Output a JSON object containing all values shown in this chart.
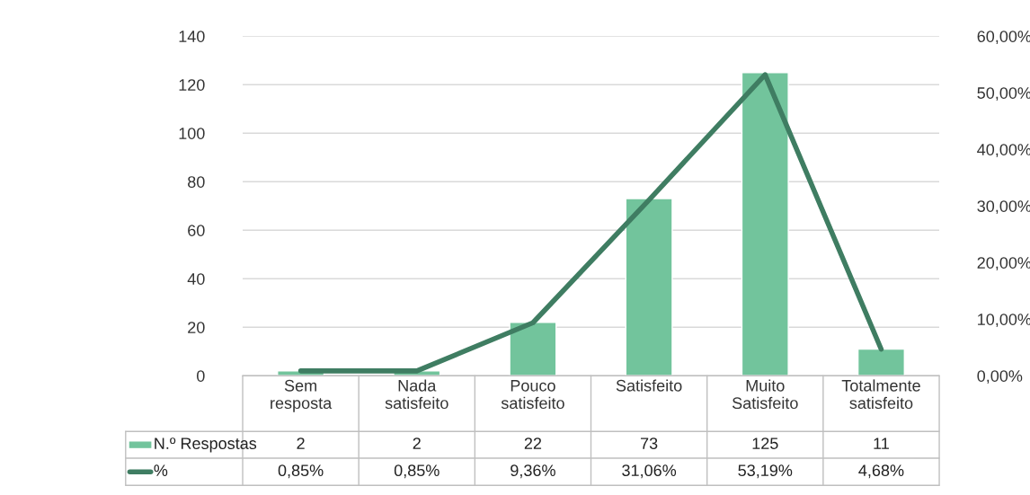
{
  "chart_data": {
    "type": "bar",
    "categories": [
      "Sem\nresposta",
      "Nada\nsatisfeito",
      "Pouco\nsatisfeito",
      "Satisfeito",
      "Muito\nSatisfeito",
      "Totalmente\nsatisfeito"
    ],
    "series": [
      {
        "name": "N.º Respostas",
        "color": "#72c49c",
        "values": [
          2,
          2,
          22,
          73,
          125,
          11
        ],
        "value_labels": [
          "2",
          "2",
          "22",
          "73",
          "125",
          "11"
        ]
      },
      {
        "name": "%",
        "type": "line",
        "axis": "y2",
        "color": "#3f7d62",
        "values": [
          0.85,
          0.85,
          9.36,
          31.06,
          53.19,
          4.68
        ],
        "value_labels": [
          "0,85%",
          "0,85%",
          "9,36%",
          "31,06%",
          "53,19%",
          "4,68%"
        ]
      }
    ],
    "ylim": [
      0,
      140
    ],
    "yticks": [
      0,
      20,
      40,
      60,
      80,
      100,
      120,
      140
    ],
    "y2lim": [
      0,
      60
    ],
    "y2ticks": [
      {
        "value": 0,
        "label": "0,00%"
      },
      {
        "value": 10,
        "label": "10,00%"
      },
      {
        "value": 20,
        "label": "20,00%"
      },
      {
        "value": 30,
        "label": "30,00%"
      },
      {
        "value": 40,
        "label": "40,00%"
      },
      {
        "value": 50,
        "label": "50,00%"
      },
      {
        "value": 60,
        "label": "60,00%"
      }
    ],
    "grid": "y",
    "legend": "bottom",
    "line_style": "solid",
    "marker": "none"
  }
}
